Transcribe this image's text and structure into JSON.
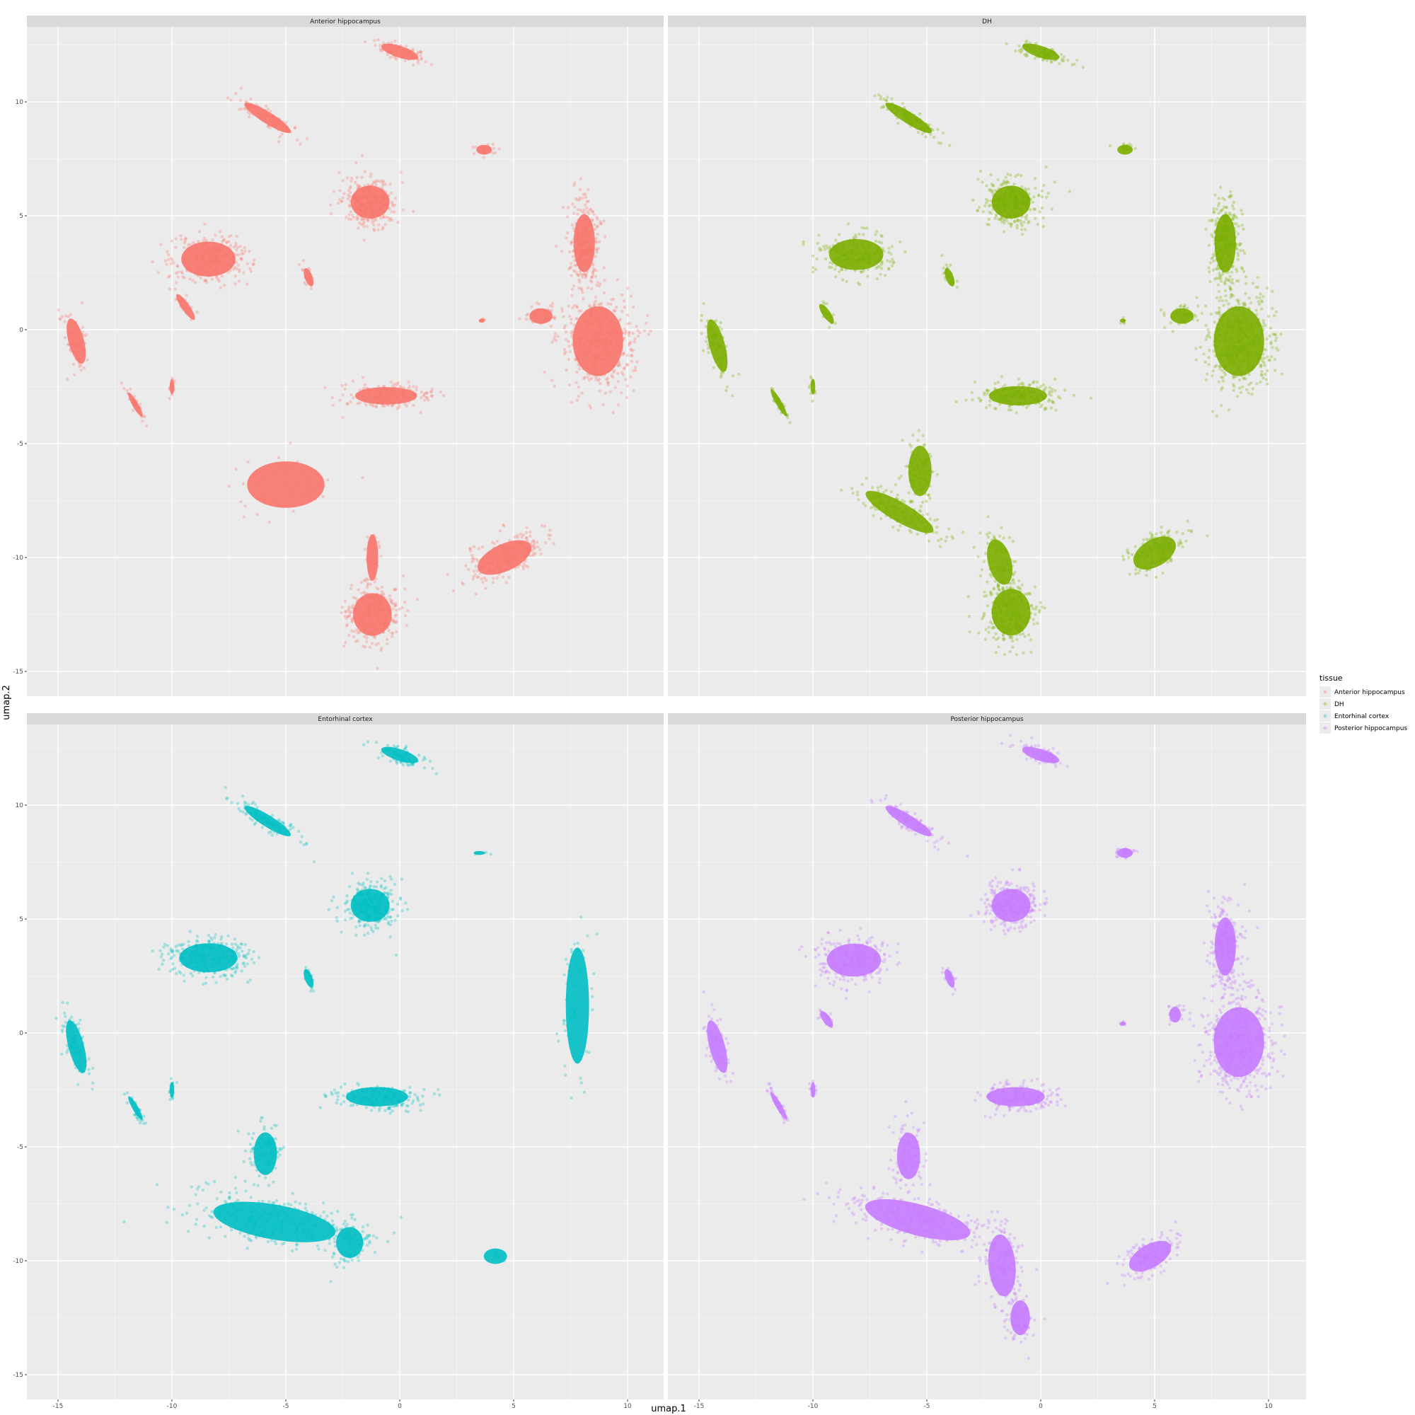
{
  "chart_data": {
    "type": "scatter",
    "xlabel": "umap.1",
    "ylabel": "umap.2",
    "xlim": [
      -16.3,
      40.1
    ],
    "ylim": [
      -15.2,
      14.1
    ],
    "xticks": [
      -15,
      -10,
      -5,
      0,
      5,
      10
    ],
    "yticks": [
      -15,
      -10,
      -5,
      0,
      5,
      10
    ],
    "grid": true,
    "legend": {
      "title": "tissue",
      "placement": "right",
      "items": [
        {
          "label": "Anterior hippocampus",
          "color": "#F8766D"
        },
        {
          "label": "DH",
          "color": "#7CAE00"
        },
        {
          "label": "Entorhinal cortex",
          "color": "#00BFC4"
        },
        {
          "label": "Posterior hippocampus",
          "color": "#C77CFF"
        }
      ]
    },
    "panels": [
      {
        "title": "Anterior hippocampus",
        "color": "#F8766D",
        "clusters": [
          {
            "cx": 0,
            "cy": 12.2,
            "rx": 0.3,
            "ry": 1.0,
            "rot": 72,
            "n": 90
          },
          {
            "cx": -5.8,
            "cy": 9.3,
            "rx": 0.3,
            "ry": 1.4,
            "rot": 58,
            "n": 110
          },
          {
            "cx": 3.7,
            "cy": 7.9,
            "rx": 0.4,
            "ry": 0.25,
            "rot": 0,
            "n": 30
          },
          {
            "cx": -1.3,
            "cy": 5.6,
            "rx": 1.0,
            "ry": 0.85,
            "rot": 0,
            "n": 320
          },
          {
            "cx": -8.4,
            "cy": 3.1,
            "rx": 1.4,
            "ry": 0.9,
            "rot": 0,
            "n": 330
          },
          {
            "cx": 8.1,
            "cy": 3.8,
            "rx": 0.55,
            "ry": 1.5,
            "rot": 0,
            "n": 300
          },
          {
            "cx": 8.7,
            "cy": -0.5,
            "rx": 1.3,
            "ry": 1.8,
            "rot": 0,
            "n": 500
          },
          {
            "cx": 6.2,
            "cy": 0.6,
            "rx": 0.6,
            "ry": 0.4,
            "rot": 0,
            "n": 60
          },
          {
            "cx": -4.0,
            "cy": 2.3,
            "rx": 0.2,
            "ry": 0.5,
            "rot": 20,
            "n": 20
          },
          {
            "cx": -14.2,
            "cy": -0.5,
            "rx": 0.4,
            "ry": 1.2,
            "rot": 15,
            "n": 80
          },
          {
            "cx": -9.4,
            "cy": 1.0,
            "rx": 0.2,
            "ry": 0.8,
            "rot": 35,
            "n": 30
          },
          {
            "cx": -11.6,
            "cy": -3.3,
            "rx": 0.15,
            "ry": 0.7,
            "rot": 30,
            "n": 30
          },
          {
            "cx": -10.0,
            "cy": -2.5,
            "rx": 0.12,
            "ry": 0.4,
            "rot": 0,
            "n": 15
          },
          {
            "cx": 3.6,
            "cy": 0.4,
            "rx": 0.15,
            "ry": 0.1,
            "rot": 0,
            "n": 6
          },
          {
            "cx": -0.6,
            "cy": -2.9,
            "rx": 1.6,
            "ry": 0.45,
            "rot": 0,
            "n": 200
          },
          {
            "cx": -5.0,
            "cy": -6.8,
            "rx": 2.0,
            "ry": 1.2,
            "rot": 0,
            "n": 45
          },
          {
            "cx": -1.2,
            "cy": -12.5,
            "rx": 1.0,
            "ry": 1.1,
            "rot": 0,
            "n": 330
          },
          {
            "cx": -1.2,
            "cy": -10.0,
            "rx": 0.3,
            "ry": 1.2,
            "rot": 0,
            "n": 40
          },
          {
            "cx": 4.6,
            "cy": -10.0,
            "rx": 1.5,
            "ry": 0.7,
            "rot": 25,
            "n": 250
          }
        ]
      },
      {
        "title": "DH",
        "color": "#7CAE00",
        "clusters": [
          {
            "cx": 0,
            "cy": 12.2,
            "rx": 0.3,
            "ry": 1.0,
            "rot": 72,
            "n": 90
          },
          {
            "cx": -5.8,
            "cy": 9.3,
            "rx": 0.3,
            "ry": 1.4,
            "rot": 58,
            "n": 110
          },
          {
            "cx": 3.7,
            "cy": 7.9,
            "rx": 0.4,
            "ry": 0.25,
            "rot": 0,
            "n": 20
          },
          {
            "cx": -1.3,
            "cy": 5.6,
            "rx": 1.0,
            "ry": 0.85,
            "rot": 0,
            "n": 320
          },
          {
            "cx": -8.1,
            "cy": 3.3,
            "rx": 1.4,
            "ry": 0.8,
            "rot": 0,
            "n": 230
          },
          {
            "cx": 8.1,
            "cy": 3.8,
            "rx": 0.55,
            "ry": 1.5,
            "rot": 0,
            "n": 300
          },
          {
            "cx": 8.7,
            "cy": -0.5,
            "rx": 1.3,
            "ry": 1.8,
            "rot": 0,
            "n": 500
          },
          {
            "cx": 6.2,
            "cy": 0.6,
            "rx": 0.6,
            "ry": 0.4,
            "rot": 0,
            "n": 50
          },
          {
            "cx": -4.0,
            "cy": 2.3,
            "rx": 0.2,
            "ry": 0.5,
            "rot": 20,
            "n": 20
          },
          {
            "cx": -14.2,
            "cy": -0.7,
            "rx": 0.4,
            "ry": 1.4,
            "rot": 15,
            "n": 80
          },
          {
            "cx": -9.4,
            "cy": 0.7,
            "rx": 0.2,
            "ry": 0.6,
            "rot": 35,
            "n": 20
          },
          {
            "cx": -11.5,
            "cy": -3.2,
            "rx": 0.15,
            "ry": 0.8,
            "rot": 30,
            "n": 35
          },
          {
            "cx": -10.0,
            "cy": -2.5,
            "rx": 0.12,
            "ry": 0.4,
            "rot": 0,
            "n": 15
          },
          {
            "cx": 3.6,
            "cy": 0.4,
            "rx": 0.15,
            "ry": 0.1,
            "rot": 0,
            "n": 6
          },
          {
            "cx": -1.0,
            "cy": -2.9,
            "rx": 1.5,
            "ry": 0.5,
            "rot": 0,
            "n": 180
          },
          {
            "cx": -5.3,
            "cy": -6.2,
            "rx": 0.6,
            "ry": 1.3,
            "rot": 0,
            "n": 120
          },
          {
            "cx": -6.2,
            "cy": -8.0,
            "rx": 2.0,
            "ry": 0.5,
            "rot": -30,
            "n": 150
          },
          {
            "cx": -1.3,
            "cy": -12.4,
            "rx": 1.0,
            "ry": 1.2,
            "rot": 0,
            "n": 280
          },
          {
            "cx": -1.8,
            "cy": -10.2,
            "rx": 0.6,
            "ry": 1.2,
            "rot": 15,
            "n": 100
          },
          {
            "cx": 5.0,
            "cy": -9.8,
            "rx": 1.2,
            "ry": 0.7,
            "rot": 30,
            "n": 160
          }
        ]
      },
      {
        "title": "Entorhinal cortex",
        "color": "#00BFC4",
        "clusters": [
          {
            "cx": 0,
            "cy": 12.2,
            "rx": 0.3,
            "ry": 1.0,
            "rot": 72,
            "n": 90
          },
          {
            "cx": -5.8,
            "cy": 9.3,
            "rx": 0.3,
            "ry": 1.4,
            "rot": 58,
            "n": 110
          },
          {
            "cx": 3.5,
            "cy": 7.9,
            "rx": 0.3,
            "ry": 0.1,
            "rot": 0,
            "n": 6
          },
          {
            "cx": -1.3,
            "cy": 5.6,
            "rx": 1.0,
            "ry": 0.85,
            "rot": 0,
            "n": 320
          },
          {
            "cx": -8.4,
            "cy": 3.3,
            "rx": 1.5,
            "ry": 0.75,
            "rot": 0,
            "n": 300
          },
          {
            "cx": 7.8,
            "cy": 1.2,
            "rx": 0.6,
            "ry": 3.0,
            "rot": 0,
            "n": 70
          },
          {
            "cx": -4.0,
            "cy": 2.4,
            "rx": 0.2,
            "ry": 0.5,
            "rot": 20,
            "n": 20
          },
          {
            "cx": -14.2,
            "cy": -0.6,
            "rx": 0.4,
            "ry": 1.4,
            "rot": 15,
            "n": 100
          },
          {
            "cx": -11.6,
            "cy": -3.3,
            "rx": 0.15,
            "ry": 0.7,
            "rot": 30,
            "n": 30
          },
          {
            "cx": -10.0,
            "cy": -2.5,
            "rx": 0.12,
            "ry": 0.4,
            "rot": 0,
            "n": 15
          },
          {
            "cx": -1.0,
            "cy": -2.8,
            "rx": 1.6,
            "ry": 0.5,
            "rot": 0,
            "n": 200
          },
          {
            "cx": -5.9,
            "cy": -5.3,
            "rx": 0.6,
            "ry": 1.1,
            "rot": 0,
            "n": 120
          },
          {
            "cx": -5.5,
            "cy": -8.3,
            "rx": 3.2,
            "ry": 0.9,
            "rot": -10,
            "n": 350
          },
          {
            "cx": -2.2,
            "cy": -9.2,
            "rx": 0.7,
            "ry": 0.8,
            "rot": 0,
            "n": 80
          },
          {
            "cx": 4.2,
            "cy": -9.8,
            "rx": 0.6,
            "ry": 0.4,
            "rot": 0,
            "n": 8
          }
        ]
      },
      {
        "title": "Posterior hippocampus",
        "color": "#C77CFF",
        "clusters": [
          {
            "cx": 0,
            "cy": 12.2,
            "rx": 0.3,
            "ry": 1.0,
            "rot": 72,
            "n": 90
          },
          {
            "cx": -5.8,
            "cy": 9.3,
            "rx": 0.3,
            "ry": 1.4,
            "rot": 58,
            "n": 110
          },
          {
            "cx": 3.7,
            "cy": 7.9,
            "rx": 0.4,
            "ry": 0.25,
            "rot": 0,
            "n": 30
          },
          {
            "cx": -1.3,
            "cy": 5.6,
            "rx": 1.0,
            "ry": 0.85,
            "rot": 0,
            "n": 320
          },
          {
            "cx": -8.2,
            "cy": 3.2,
            "rx": 1.4,
            "ry": 0.85,
            "rot": 0,
            "n": 300
          },
          {
            "cx": 8.1,
            "cy": 3.8,
            "rx": 0.55,
            "ry": 1.5,
            "rot": 0,
            "n": 300
          },
          {
            "cx": 8.7,
            "cy": -0.4,
            "rx": 1.3,
            "ry": 1.8,
            "rot": 0,
            "n": 500
          },
          {
            "cx": 5.9,
            "cy": 0.8,
            "rx": 0.3,
            "ry": 0.4,
            "rot": 0,
            "n": 30
          },
          {
            "cx": -4.0,
            "cy": 2.4,
            "rx": 0.2,
            "ry": 0.5,
            "rot": 20,
            "n": 20
          },
          {
            "cx": -14.2,
            "cy": -0.6,
            "rx": 0.4,
            "ry": 1.4,
            "rot": 15,
            "n": 80
          },
          {
            "cx": -9.4,
            "cy": 0.6,
            "rx": 0.2,
            "ry": 0.5,
            "rot": 35,
            "n": 20
          },
          {
            "cx": -11.5,
            "cy": -3.2,
            "rx": 0.15,
            "ry": 0.8,
            "rot": 30,
            "n": 35
          },
          {
            "cx": -10.0,
            "cy": -2.5,
            "rx": 0.12,
            "ry": 0.4,
            "rot": 0,
            "n": 15
          },
          {
            "cx": 3.6,
            "cy": 0.4,
            "rx": 0.15,
            "ry": 0.1,
            "rot": 0,
            "n": 6
          },
          {
            "cx": -1.1,
            "cy": -2.8,
            "rx": 1.5,
            "ry": 0.5,
            "rot": 0,
            "n": 200
          },
          {
            "cx": -5.8,
            "cy": -5.4,
            "rx": 0.6,
            "ry": 1.2,
            "rot": 0,
            "n": 120
          },
          {
            "cx": -5.4,
            "cy": -8.2,
            "rx": 2.8,
            "ry": 0.8,
            "rot": -15,
            "n": 300
          },
          {
            "cx": -1.7,
            "cy": -10.2,
            "rx": 0.7,
            "ry": 1.6,
            "rot": 5,
            "n": 180
          },
          {
            "cx": -0.9,
            "cy": -12.5,
            "rx": 0.5,
            "ry": 0.9,
            "rot": 0,
            "n": 100
          },
          {
            "cx": 4.8,
            "cy": -9.8,
            "rx": 1.2,
            "ry": 0.6,
            "rot": 30,
            "n": 160
          }
        ]
      }
    ]
  }
}
